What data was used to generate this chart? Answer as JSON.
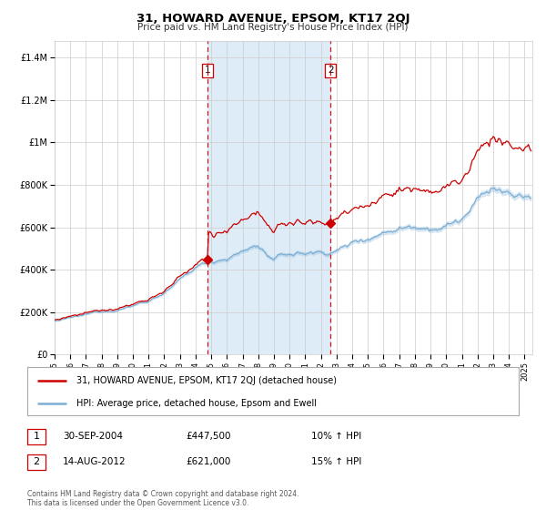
{
  "title": "31, HOWARD AVENUE, EPSOM, KT17 2QJ",
  "subtitle": "Price paid vs. HM Land Registry's House Price Index (HPI)",
  "ylabel_ticks": [
    "£0",
    "£200K",
    "£400K",
    "£600K",
    "£800K",
    "£1M",
    "£1.2M",
    "£1.4M"
  ],
  "ytick_values": [
    0,
    200000,
    400000,
    600000,
    800000,
    1000000,
    1200000,
    1400000
  ],
  "ylim": [
    0,
    1480000
  ],
  "xlim_start": 1995.0,
  "xlim_end": 2025.5,
  "red_line_color": "#cc0000",
  "blue_line_color": "#7bafd4",
  "blue_fill_color": "#d6e8f5",
  "marker1_x": 2004.75,
  "marker1_y": 447500,
  "marker1_label": "1",
  "marker2_x": 2012.62,
  "marker2_y": 621000,
  "marker2_label": "2",
  "vline1_x": 2004.75,
  "vline2_x": 2012.62,
  "vline_color": "#cc0000",
  "legend_line1": "31, HOWARD AVENUE, EPSOM, KT17 2QJ (detached house)",
  "legend_line2": "HPI: Average price, detached house, Epsom and Ewell",
  "annotation1_num": "1",
  "annotation1_date": "30-SEP-2004",
  "annotation1_price": "£447,500",
  "annotation1_hpi": "10% ↑ HPI",
  "annotation2_num": "2",
  "annotation2_date": "14-AUG-2012",
  "annotation2_price": "£621,000",
  "annotation2_hpi": "15% ↑ HPI",
  "footnote": "Contains HM Land Registry data © Crown copyright and database right 2024.\nThis data is licensed under the Open Government Licence v3.0.",
  "background_color": "#ffffff",
  "grid_color": "#cccccc",
  "xtick_years": [
    1995,
    1996,
    1997,
    1998,
    1999,
    2000,
    2001,
    2002,
    2003,
    2004,
    2005,
    2006,
    2007,
    2008,
    2009,
    2010,
    2011,
    2012,
    2013,
    2014,
    2015,
    2016,
    2017,
    2018,
    2019,
    2020,
    2021,
    2022,
    2023,
    2024,
    2025
  ]
}
